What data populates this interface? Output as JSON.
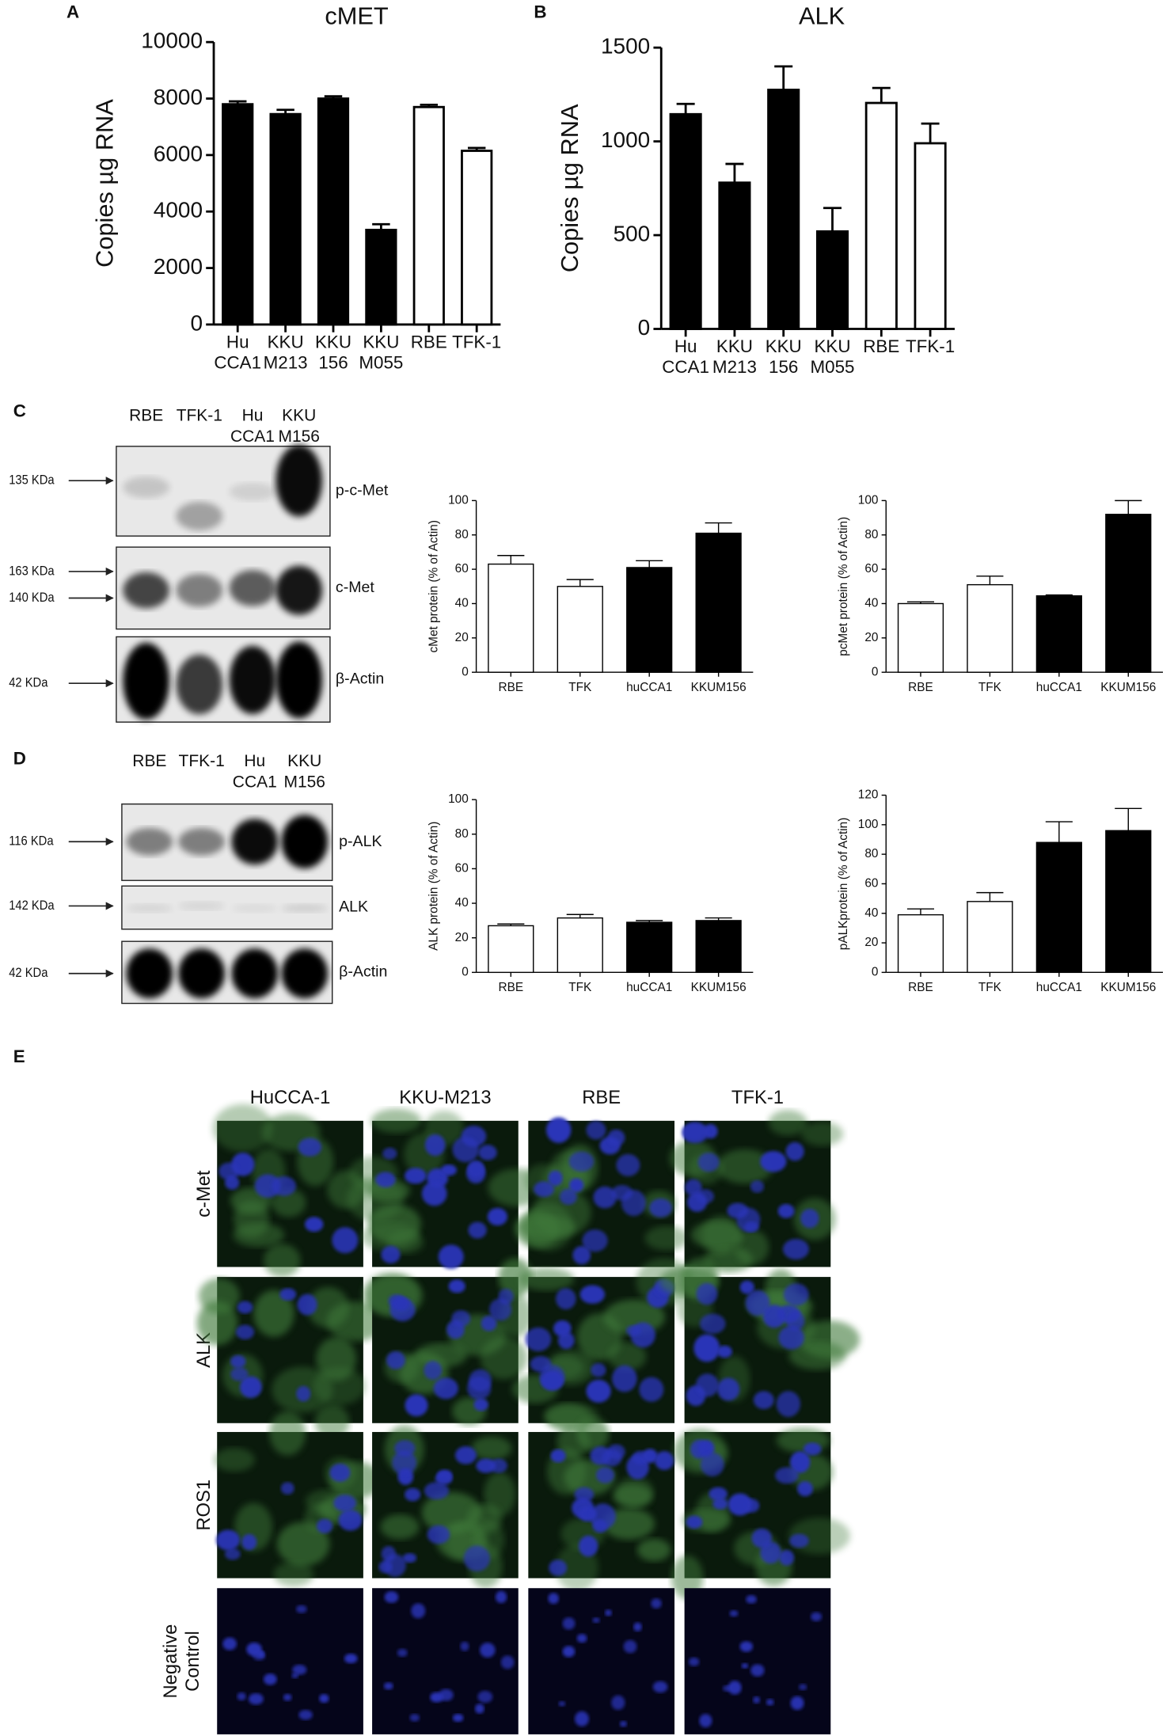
{
  "panel_letters": [
    "A",
    "B",
    "C",
    "D",
    "E"
  ],
  "chart_data": [
    {
      "type": "bar",
      "title": "cMET",
      "y_label": "Copies µg RNA",
      "categories": [
        [
          "Hu",
          "CCA1"
        ],
        [
          "KKU",
          "M213"
        ],
        [
          "KKU",
          "156"
        ],
        [
          "KKU",
          "M055"
        ],
        [
          "RBE"
        ],
        [
          "TFK-1"
        ]
      ],
      "series": [
        {
          "colors": [
            "#000000",
            "#000000",
            "#000000",
            "#000000",
            "#ffffff",
            "#ffffff"
          ],
          "values": [
            7800,
            7450,
            8000,
            3350,
            7700,
            6150
          ],
          "errors": [
            100,
            150,
            80,
            200,
            80,
            100
          ]
        }
      ],
      "ylim": [
        0,
        10000
      ],
      "yticks": [
        0,
        2000,
        4000,
        6000,
        8000,
        10000
      ]
    },
    {
      "type": "bar",
      "title": "ALK",
      "y_label": "Copies µg RNA",
      "categories": [
        [
          "Hu",
          "CCA1"
        ],
        [
          "KKU",
          "M213"
        ],
        [
          "KKU",
          "156"
        ],
        [
          "KKU",
          "M055"
        ],
        [
          "RBE"
        ],
        [
          "TFK-1"
        ]
      ],
      "series": [
        {
          "colors": [
            "#000000",
            "#000000",
            "#000000",
            "#000000",
            "#ffffff",
            "#ffffff"
          ],
          "values": [
            1145,
            780,
            1275,
            520,
            1205,
            990
          ],
          "errors": [
            55,
            100,
            125,
            125,
            80,
            105
          ]
        }
      ],
      "ylim": [
        0,
        1500
      ],
      "yticks": [
        0,
        500,
        1000,
        1500
      ]
    },
    {
      "type": "bar",
      "y_label": "cMet protein (% of Actin)",
      "categories": [
        [
          "RBE"
        ],
        [
          "TFK"
        ],
        [
          "huCCA1"
        ],
        [
          "KKUM156"
        ]
      ],
      "series": [
        {
          "colors": [
            "#ffffff",
            "#ffffff",
            "#000000",
            "#000000"
          ],
          "values": [
            63,
            50,
            61,
            81
          ],
          "errors": [
            5,
            4,
            4,
            6
          ]
        }
      ],
      "ylim": [
        0,
        100
      ],
      "yticks": [
        0,
        20,
        40,
        60,
        80,
        100
      ]
    },
    {
      "type": "bar",
      "y_label": "pcMet protein (% of Actin)",
      "categories": [
        [
          "RBE"
        ],
        [
          "TFK"
        ],
        [
          "huCCA1"
        ],
        [
          "KKUM156"
        ]
      ],
      "series": [
        {
          "colors": [
            "#ffffff",
            "#ffffff",
            "#000000",
            "#000000"
          ],
          "values": [
            40,
            51,
            44.5,
            92
          ],
          "errors": [
            1,
            5,
            0.5,
            8
          ]
        }
      ],
      "ylim": [
        0,
        100
      ],
      "yticks": [
        0,
        20,
        40,
        60,
        80,
        100
      ]
    },
    {
      "type": "bar",
      "y_label": "ALK protein (% of Actin)",
      "categories": [
        [
          "RBE"
        ],
        [
          "TFK"
        ],
        [
          "huCCA1"
        ],
        [
          "KKUM156"
        ]
      ],
      "series": [
        {
          "colors": [
            "#ffffff",
            "#ffffff",
            "#000000",
            "#000000"
          ],
          "values": [
            27,
            31.5,
            29,
            30
          ],
          "errors": [
            1,
            2,
            1,
            1.5
          ]
        }
      ],
      "ylim": [
        0,
        100
      ],
      "yticks": [
        0,
        20,
        40,
        60,
        80,
        100
      ]
    },
    {
      "type": "bar",
      "y_label": "pALKprotein (% of Actin)",
      "categories": [
        [
          "RBE"
        ],
        [
          "TFK"
        ],
        [
          "huCCA1"
        ],
        [
          "KKUM156"
        ]
      ],
      "series": [
        {
          "colors": [
            "#ffffff",
            "#ffffff",
            "#000000",
            "#000000"
          ],
          "values": [
            39,
            48,
            88,
            96
          ],
          "errors": [
            4,
            6,
            14,
            15
          ]
        }
      ],
      "ylim": [
        0,
        120
      ],
      "yticks": [
        0,
        20,
        40,
        60,
        80,
        100,
        120
      ]
    }
  ],
  "blots": [
    {
      "lanes": [
        [
          "RBE"
        ],
        [
          "TFK-1"
        ],
        [
          "Hu",
          "CCA1"
        ],
        [
          "KKU",
          "M156"
        ]
      ],
      "rows": [
        {
          "markers": [
            "135 KDa"
          ],
          "label": "p-c-Met"
        },
        {
          "markers": [
            "163 KDa",
            "140 KDa"
          ],
          "label": "c-Met"
        },
        {
          "markers": [
            "42 KDa"
          ],
          "label": "β-Actin"
        }
      ]
    },
    {
      "lanes": [
        [
          "RBE"
        ],
        [
          "TFK-1"
        ],
        [
          "Hu",
          "CCA1"
        ],
        [
          "KKU",
          "M156"
        ]
      ],
      "rows": [
        {
          "markers": [
            "116 KDa"
          ],
          "label": "p-ALK"
        },
        {
          "markers": [
            "142 KDa"
          ],
          "label": "ALK"
        },
        {
          "markers": [
            "42 KDa"
          ],
          "label": "β-Actin"
        }
      ]
    }
  ],
  "microscopy": {
    "columns": [
      "HuCCA-1",
      "KKU-M213",
      "RBE",
      "TFK-1"
    ],
    "rows": [
      [
        "c-Met"
      ],
      [
        "ALK"
      ],
      [
        "ROS1"
      ],
      [
        "Negative",
        "Control"
      ]
    ]
  }
}
